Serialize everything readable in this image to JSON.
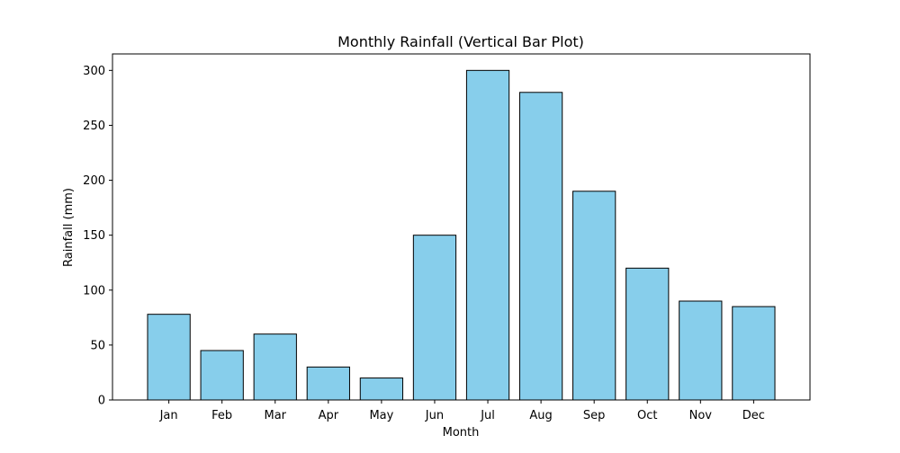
{
  "chart_data": {
    "type": "bar",
    "title": "Monthly Rainfall (Vertical Bar Plot)",
    "xlabel": "Month",
    "ylabel": "Rainfall (mm)",
    "categories": [
      "Jan",
      "Feb",
      "Mar",
      "Apr",
      "May",
      "Jun",
      "Jul",
      "Aug",
      "Sep",
      "Oct",
      "Nov",
      "Dec"
    ],
    "values": [
      78,
      45,
      60,
      30,
      20,
      150,
      300,
      280,
      190,
      120,
      90,
      85
    ],
    "ylim": [
      0,
      315
    ],
    "yticks": [
      0,
      50,
      100,
      150,
      200,
      250,
      300
    ],
    "grid": false,
    "legend": "none",
    "bar_color": "#87CEEB",
    "edge_color": "#000000"
  }
}
